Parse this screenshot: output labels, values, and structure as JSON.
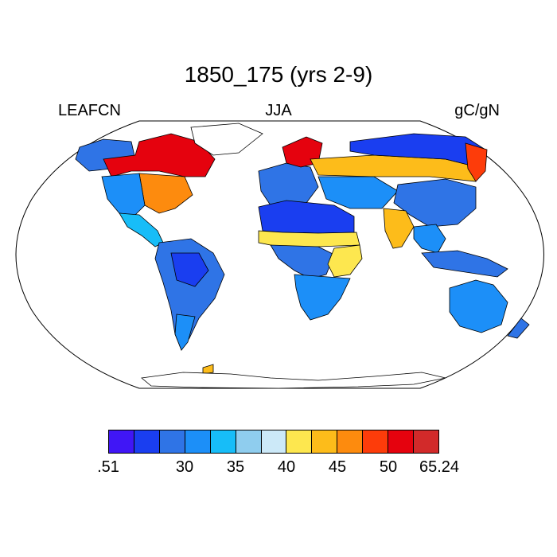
{
  "title": "1850_175 (yrs 2-9)",
  "left_label": "LEAFCN",
  "center_label": "JJA",
  "right_label": "gC/gN",
  "colorbar": {
    "colors": [
      "#4016f6",
      "#1a3ef0",
      "#2f74e6",
      "#1c8ff8",
      "#17bdf8",
      "#8fcdee",
      "#cce9f8",
      "#fde74f",
      "#fdbc1a",
      "#fd8b0e",
      "#fd3c0a",
      "#e5020e",
      "#d22a2a"
    ],
    "tick_labels": [
      ".51",
      "30",
      "35",
      "40",
      "45",
      "50",
      "65.24"
    ]
  },
  "map": {
    "projection": "Robinson",
    "colored_regions": [
      {
        "name": "Alaska",
        "color": "#2f74e6"
      },
      {
        "name": "Canada",
        "color": "#e5020e"
      },
      {
        "name": "Eastern United States",
        "color": "#fd8b0e"
      },
      {
        "name": "Western United States",
        "color": "#1c8ff8"
      },
      {
        "name": "Mexico and Central America",
        "color": "#17bdf8"
      },
      {
        "name": "South America",
        "color": "#2f74e6"
      },
      {
        "name": "Amazon basin",
        "color": "#1a3ef0"
      },
      {
        "name": "Southern South America",
        "color": "#1c8ff8"
      },
      {
        "name": "Europe",
        "color": "#2f74e6"
      },
      {
        "name": "Scandinavia",
        "color": "#e5020e"
      },
      {
        "name": "Russia boreal belt",
        "color": "#fdbc1a"
      },
      {
        "name": "Siberia",
        "color": "#1a3ef0"
      },
      {
        "name": "Far East Russia",
        "color": "#fd3c0a"
      },
      {
        "name": "Central Asia",
        "color": "#1c8ff8"
      },
      {
        "name": "China",
        "color": "#2f74e6"
      },
      {
        "name": "India",
        "color": "#fdbc1a"
      },
      {
        "name": "Sahara",
        "color": "#1a3ef0"
      },
      {
        "name": "Sahel belt",
        "color": "#fde74f"
      },
      {
        "name": "Central Africa",
        "color": "#2f74e6"
      },
      {
        "name": "East Africa",
        "color": "#fde74f"
      },
      {
        "name": "Southern Africa",
        "color": "#1c8ff8"
      },
      {
        "name": "Southeast Asia",
        "color": "#1c8ff8"
      },
      {
        "name": "Indonesia",
        "color": "#2f74e6"
      },
      {
        "name": "Australia",
        "color": "#1c8ff8"
      },
      {
        "name": "New Zealand",
        "color": "#2f74e6"
      },
      {
        "name": "Antarctic Peninsula",
        "color": "#fdbc1a"
      }
    ]
  }
}
